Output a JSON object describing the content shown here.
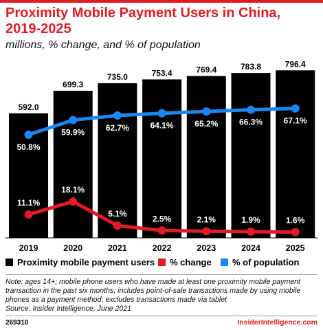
{
  "title": "Proximity Mobile Payment Users in China, 2019-2025",
  "subtitle": "millions, % change, and % of population",
  "colors": {
    "accent": "#e31b23",
    "bars": "#000000",
    "change": "#e31b23",
    "population": "#1a87f5"
  },
  "chart_data": {
    "type": "bar",
    "categories": [
      "2019",
      "2020",
      "2021",
      "2022",
      "2023",
      "2024",
      "2025"
    ],
    "series": [
      {
        "name": "Proximity mobile payment users",
        "type": "bar",
        "values": [
          592.0,
          699.3,
          735.0,
          753.4,
          769.4,
          783.8,
          796.4
        ],
        "labels": [
          "592.0",
          "699.3",
          "735.0",
          "753.4",
          "769.4",
          "783.8",
          "796.4"
        ],
        "color": "#000000"
      },
      {
        "name": "% change",
        "type": "line",
        "values": [
          11.1,
          18.1,
          5.1,
          2.5,
          2.1,
          1.9,
          1.6
        ],
        "labels": [
          "11.1%",
          "18.1%",
          "5.1%",
          "2.5%",
          "2.1%",
          "1.9%",
          "1.6%"
        ],
        "color": "#e31b23"
      },
      {
        "name": "% of population",
        "type": "line",
        "values": [
          50.8,
          59.9,
          62.7,
          64.1,
          65.2,
          66.3,
          67.1
        ],
        "labels": [
          "50.8%",
          "59.9%",
          "62.7%",
          "64.1%",
          "65.2%",
          "66.3%",
          "67.1%"
        ],
        "color": "#1a87f5"
      }
    ],
    "legend": "bottom",
    "grid": false
  },
  "note": "Note: ages 14+; mobile phone users who have made at least one proximity mobile payment transaction in the past six months; includes point-of-sale transactions made by using mobile phones as a payment method; excludes transactions made via tablet",
  "source": "Source: Insider Intelligence, June 2021",
  "chart_id": "269310",
  "brand": "InsiderIntelligence.com"
}
